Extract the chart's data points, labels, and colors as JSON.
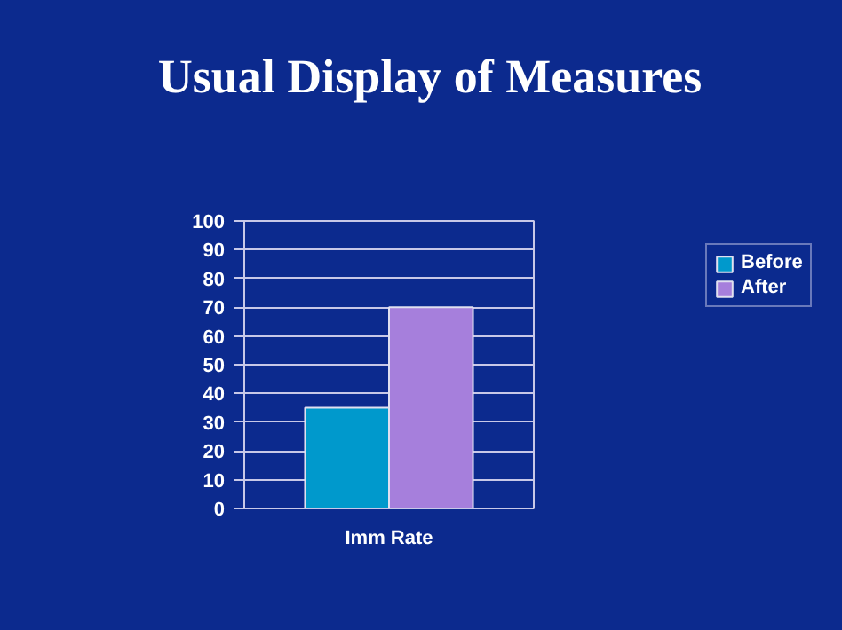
{
  "chart_data": {
    "type": "bar",
    "title": "Usual Display of Measures",
    "categories": [
      "Imm Rate"
    ],
    "series": [
      {
        "name": "Before",
        "color": "#0099cc",
        "values": [
          35
        ]
      },
      {
        "name": "After",
        "color": "#a67fdc",
        "values": [
          70
        ]
      }
    ],
    "ylim": [
      0,
      100
    ],
    "yticks": [
      0,
      10,
      20,
      30,
      40,
      50,
      60,
      70,
      80,
      90,
      100
    ],
    "grid": "y",
    "legend": "right"
  }
}
